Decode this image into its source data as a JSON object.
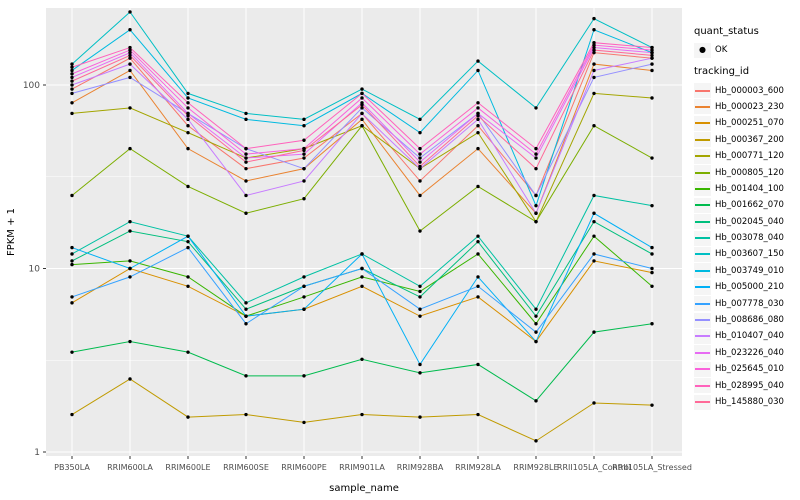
{
  "chart_data": {
    "type": "line",
    "title": "",
    "xlabel": "sample_name",
    "ylabel": "FPKM + 1",
    "y_scale": "log10",
    "y_ticks": [
      1,
      10,
      100
    ],
    "ylim": [
      0.95,
      260
    ],
    "grid": true,
    "panel_bg": "#EBEBEB",
    "grid_color": "#FFFFFF",
    "point_color": "#000000",
    "tick_label_color": "#4D4D4D",
    "legend_position": "right",
    "categories": [
      "PB350LA",
      "RRIM600LA",
      "RRIM600LE",
      "RRIM600SE",
      "RRIM600PE",
      "RRIM901LA",
      "RRIM928BA",
      "RRIM928LA",
      "RRIM928LE",
      "RRII105LA_Control",
      "RRII105LA_Stressed"
    ],
    "legend": {
      "quant_status_title": "quant_status",
      "items": [
        {
          "label": "OK",
          "marker": "point"
        }
      ],
      "tracking_title": "tracking_id"
    },
    "series": [
      {
        "name": "Hb_000003_600",
        "color": "#F8766D",
        "values": [
          95,
          140,
          60,
          35,
          40,
          70,
          30,
          60,
          25,
          150,
          140
        ]
      },
      {
        "name": "Hb_000023_230",
        "color": "#EA8331",
        "values": [
          80,
          120,
          45,
          30,
          35,
          65,
          25,
          45,
          20,
          130,
          120
        ]
      },
      {
        "name": "Hb_000251_070",
        "color": "#D89000",
        "values": [
          6.5,
          10,
          8,
          5.5,
          6,
          8,
          5.5,
          7,
          4,
          11,
          9.5
        ]
      },
      {
        "name": "Hb_000367_200",
        "color": "#C09B00",
        "values": [
          1.6,
          2.5,
          1.55,
          1.6,
          1.45,
          1.6,
          1.55,
          1.6,
          1.15,
          1.85,
          1.8
        ]
      },
      {
        "name": "Hb_000771_120",
        "color": "#A3A500",
        "values": [
          70,
          75,
          55,
          40,
          45,
          60,
          35,
          55,
          18,
          90,
          85
        ]
      },
      {
        "name": "Hb_000805_120",
        "color": "#7CAE00",
        "values": [
          25,
          45,
          28,
          20,
          24,
          60,
          16,
          28,
          18,
          60,
          40
        ]
      },
      {
        "name": "Hb_001404_100",
        "color": "#39B600",
        "values": [
          10.5,
          11,
          9,
          5.5,
          7,
          9,
          7.5,
          12,
          5,
          15,
          8
        ]
      },
      {
        "name": "Hb_001662_070",
        "color": "#00BB4E",
        "values": [
          3.5,
          4,
          3.5,
          2.6,
          2.6,
          3.2,
          2.7,
          3,
          1.9,
          4.5,
          5
        ]
      },
      {
        "name": "Hb_002045_040",
        "color": "#00BF7D",
        "values": [
          11,
          16,
          14,
          6,
          8,
          10,
          7,
          14,
          5.5,
          18,
          12
        ]
      },
      {
        "name": "Hb_003078_040",
        "color": "#00C1A3",
        "values": [
          12,
          18,
          15,
          6.5,
          9,
          12,
          8,
          15,
          6,
          25,
          22
        ]
      },
      {
        "name": "Hb_003607_150",
        "color": "#00BFC4",
        "values": [
          130,
          250,
          90,
          70,
          65,
          95,
          65,
          135,
          75,
          230,
          160
        ]
      },
      {
        "name": "Hb_003749_010",
        "color": "#00BAE0",
        "values": [
          120,
          200,
          85,
          65,
          60,
          90,
          55,
          120,
          22,
          200,
          150
        ]
      },
      {
        "name": "Hb_005000_210",
        "color": "#00B0F6",
        "values": [
          13,
          10,
          15,
          5.5,
          6,
          12,
          3,
          9,
          4,
          20,
          13
        ]
      },
      {
        "name": "Hb_007778_030",
        "color": "#35A2FF",
        "values": [
          7,
          9,
          13,
          5,
          8,
          10,
          6,
          8,
          4.5,
          12,
          10
        ]
      },
      {
        "name": "Hb_008686_080",
        "color": "#9590FF",
        "values": [
          90,
          110,
          70,
          45,
          35,
          75,
          40,
          70,
          25,
          110,
          130
        ]
      },
      {
        "name": "Hb_010407_040",
        "color": "#C77CFF",
        "values": [
          100,
          130,
          65,
          25,
          30,
          70,
          35,
          65,
          20,
          120,
          140
        ]
      },
      {
        "name": "Hb_023226_040",
        "color": "#E76BF3",
        "values": [
          110,
          150,
          70,
          40,
          42,
          80,
          38,
          70,
          40,
          160,
          150
        ]
      },
      {
        "name": "Hb_025645_010",
        "color": "#FA62DB",
        "values": [
          115,
          155,
          75,
          42,
          45,
          85,
          42,
          75,
          42,
          165,
          155
        ]
      },
      {
        "name": "Hb_028995_040",
        "color": "#FF62BC",
        "values": [
          125,
          160,
          80,
          45,
          50,
          90,
          45,
          80,
          45,
          170,
          160
        ]
      },
      {
        "name": "Hb_145880_030",
        "color": "#FF6A98",
        "values": [
          105,
          145,
          68,
          38,
          44,
          78,
          36,
          68,
          35,
          155,
          145
        ]
      }
    ]
  }
}
